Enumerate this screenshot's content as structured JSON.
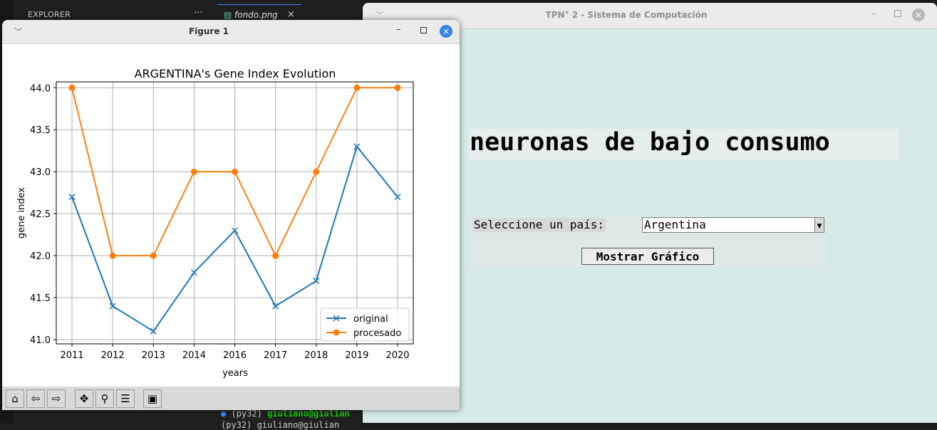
{
  "vscode": {
    "explorer_title": "EXPLORER",
    "explorer_more": "···",
    "tab_label": "fondo.png",
    "tab_close": "×",
    "terminal_line1_env": "(py32)",
    "terminal_line1_user": "giuliano@giulian",
    "terminal_line2": "(py32) giuliano@giulian"
  },
  "app": {
    "title": "TPN° 2 - Sistema de Computación",
    "heading": "neuronas de bajo consumo",
    "country_label": "Seleccione un país:",
    "country_value": "Argentina",
    "show_button": "Mostrar Gráfico"
  },
  "figure": {
    "window_title": "Figure 1",
    "toolbar": [
      {
        "name": "home-icon",
        "glyph": "⌂"
      },
      {
        "name": "back-icon",
        "glyph": "⇦"
      },
      {
        "name": "forward-icon",
        "glyph": "⇨"
      },
      {
        "name": "pan-icon",
        "glyph": "✥"
      },
      {
        "name": "zoom-icon",
        "glyph": "⚲"
      },
      {
        "name": "configure-icon",
        "glyph": "☰"
      },
      {
        "name": "save-icon",
        "glyph": "▣"
      }
    ]
  },
  "chart_data": {
    "type": "line",
    "title": "ARGENTINA's Gene Index Evolution",
    "xlabel": "years",
    "ylabel": "gene index",
    "categories": [
      "2011",
      "2012",
      "2013",
      "2014",
      "2016",
      "2017",
      "2018",
      "2019",
      "2020"
    ],
    "ylim": [
      40.95,
      44.07
    ],
    "yticks": [
      "41.0",
      "41.5",
      "42.0",
      "42.5",
      "43.0",
      "43.5",
      "44.0"
    ],
    "grid": true,
    "legend_position": "lower-right",
    "series": [
      {
        "name": "original",
        "marker": "x",
        "color": "#1f77b4",
        "values": [
          42.7,
          41.4,
          41.1,
          41.8,
          42.3,
          41.4,
          41.7,
          43.3,
          42.7
        ]
      },
      {
        "name": "procesado",
        "marker": "o",
        "color": "#ff7f0e",
        "values": [
          44.0,
          42.0,
          42.0,
          43.0,
          43.0,
          42.0,
          43.0,
          44.0,
          44.0
        ]
      }
    ]
  }
}
